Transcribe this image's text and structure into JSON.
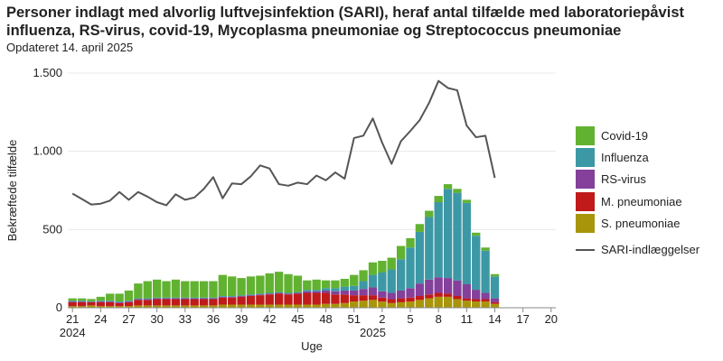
{
  "title": "Personer indlagt med alvorlig luftvejsinfektion (SARI), heraf antal tilfælde med laboratoriepåvist influenza, RS-virus, covid-19, Mycoplasma pneumoniae og Streptococcus pneumoniae",
  "subtitle": "Opdateret 14. april 2025",
  "chart_data": {
    "type": "bar",
    "stacked": true,
    "title": "Personer indlagt med alvorlig luftvejsinfektion (SARI), heraf antal tilfælde med laboratoriepåvist influenza, RS-virus, covid-19, Mycoplasma pneumoniae og Streptococcus pneumoniae",
    "subtitle": "Opdateret 14. april 2025",
    "xlabel": "Uge",
    "ylabel": "Bekræftede tilfælde",
    "ylim": [
      0,
      1500
    ],
    "yticks": [
      0,
      500,
      1000,
      1500
    ],
    "ytick_labels": [
      "0",
      "500",
      "1.000",
      "1.500"
    ],
    "grid": true,
    "legend_position": "right",
    "x_week_labels": [
      "21",
      "24",
      "27",
      "30",
      "33",
      "36",
      "39",
      "42",
      "45",
      "48",
      "51",
      "2",
      "5",
      "8",
      "11",
      "14",
      "17",
      "20"
    ],
    "x_year_labels": [
      {
        "at_week": "21",
        "text": "2024"
      },
      {
        "at_week": "1",
        "text": "2025"
      }
    ],
    "categories": [
      "21",
      "22",
      "23",
      "24",
      "25",
      "26",
      "27",
      "28",
      "29",
      "30",
      "31",
      "32",
      "33",
      "34",
      "35",
      "36",
      "37",
      "38",
      "39",
      "40",
      "41",
      "42",
      "43",
      "44",
      "45",
      "46",
      "47",
      "48",
      "49",
      "50",
      "51",
      "52",
      "1",
      "2",
      "3",
      "4",
      "5",
      "6",
      "7",
      "8",
      "9",
      "10",
      "11",
      "12",
      "13",
      "14",
      "15",
      "16",
      "17",
      "18",
      "19",
      "20"
    ],
    "series": [
      {
        "name": "S. pneumoniae",
        "color": "#a8950a",
        "values": [
          10,
          10,
          15,
          10,
          10,
          10,
          10,
          15,
          15,
          15,
          15,
          15,
          15,
          15,
          15,
          15,
          20,
          20,
          20,
          20,
          20,
          20,
          20,
          20,
          20,
          20,
          20,
          25,
          25,
          30,
          40,
          45,
          50,
          40,
          30,
          35,
          40,
          50,
          60,
          70,
          70,
          55,
          45,
          40,
          40,
          25,
          0,
          0,
          0,
          0,
          0,
          0
        ]
      },
      {
        "name": "M. pneumoniae",
        "color": "#c01a1a",
        "values": [
          25,
          25,
          20,
          25,
          25,
          20,
          25,
          35,
          35,
          40,
          40,
          40,
          40,
          40,
          40,
          40,
          45,
          45,
          50,
          55,
          60,
          65,
          70,
          65,
          70,
          75,
          75,
          70,
          60,
          55,
          40,
          35,
          30,
          25,
          25,
          25,
          25,
          25,
          25,
          25,
          20,
          20,
          15,
          15,
          15,
          10,
          0,
          0,
          0,
          0,
          0,
          0
        ]
      },
      {
        "name": "RS-virus",
        "color": "#84409a",
        "values": [
          5,
          5,
          3,
          5,
          5,
          5,
          5,
          5,
          5,
          5,
          5,
          5,
          5,
          5,
          5,
          5,
          5,
          5,
          5,
          5,
          5,
          5,
          5,
          5,
          5,
          10,
          10,
          15,
          20,
          25,
          30,
          40,
          50,
          40,
          40,
          50,
          60,
          80,
          95,
          100,
          100,
          100,
          90,
          60,
          40,
          25,
          0,
          0,
          0,
          0,
          0,
          0
        ]
      },
      {
        "name": "Influenza",
        "color": "#3d98a6",
        "values": [
          5,
          5,
          3,
          5,
          5,
          5,
          5,
          5,
          5,
          5,
          5,
          5,
          5,
          5,
          5,
          5,
          5,
          5,
          5,
          5,
          5,
          5,
          5,
          5,
          5,
          10,
          10,
          15,
          20,
          25,
          30,
          50,
          80,
          120,
          150,
          200,
          260,
          330,
          400,
          480,
          570,
          560,
          520,
          345,
          270,
          140,
          0,
          0,
          0,
          0,
          0,
          0
        ]
      },
      {
        "name": "Covid-19",
        "color": "#62b232",
        "values": [
          15,
          15,
          15,
          25,
          45,
          50,
          65,
          95,
          110,
          115,
          105,
          115,
          105,
          105,
          105,
          105,
          135,
          125,
          110,
          115,
          115,
          125,
          130,
          120,
          105,
          60,
          65,
          50,
          50,
          50,
          70,
          70,
          80,
          75,
          75,
          85,
          60,
          50,
          40,
          40,
          30,
          25,
          20,
          20,
          20,
          15,
          0,
          0,
          0,
          0,
          0,
          0
        ]
      }
    ],
    "line_series": {
      "name": "SARI-indlæggelser",
      "color": "#555555",
      "values": [
        730,
        695,
        660,
        665,
        685,
        740,
        690,
        740,
        710,
        675,
        655,
        725,
        690,
        705,
        760,
        835,
        700,
        795,
        790,
        840,
        910,
        890,
        790,
        780,
        800,
        790,
        845,
        815,
        865,
        825,
        1085,
        1100,
        1210,
        1055,
        920,
        1065,
        1130,
        1200,
        1310,
        1450,
        1405,
        1390,
        1165,
        1090,
        1100,
        830,
        null,
        null,
        null,
        null,
        null,
        null
      ]
    }
  },
  "colors": {
    "grid": "#e8e8e8",
    "axis": "#888888",
    "text": "#222222"
  }
}
